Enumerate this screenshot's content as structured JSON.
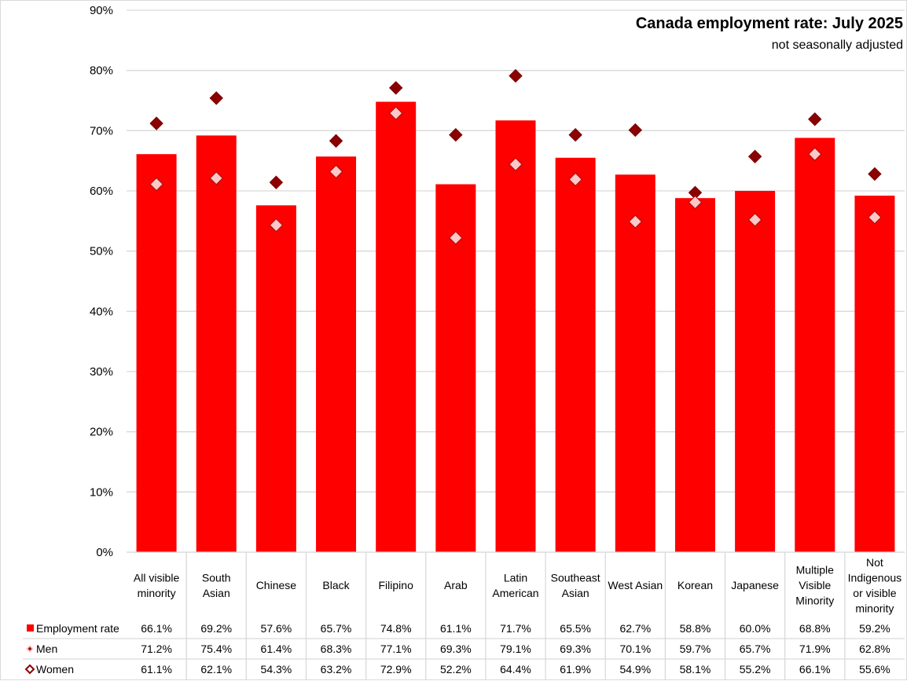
{
  "chart_data": {
    "type": "bar",
    "title": "Canada employment rate: July 2025",
    "subtitle": "not seasonally adjusted",
    "xlabel": "",
    "ylabel": "",
    "ylim": [
      0,
      90
    ],
    "y_ticks": [
      "0%",
      "10%",
      "20%",
      "30%",
      "40%",
      "50%",
      "60%",
      "70%",
      "80%",
      "90%"
    ],
    "y_tick_values": [
      0,
      10,
      20,
      30,
      40,
      50,
      60,
      70,
      80,
      90
    ],
    "grid": true,
    "legend_placement": "data-table-bottom",
    "categories": [
      [
        "All visible",
        "minority"
      ],
      [
        "South",
        "Asian"
      ],
      [
        "Chinese"
      ],
      [
        "Black"
      ],
      [
        "Filipino"
      ],
      [
        "Arab"
      ],
      [
        "Latin",
        "American"
      ],
      [
        "Southeast",
        "Asian"
      ],
      [
        "West Asian"
      ],
      [
        "Korean"
      ],
      [
        "Japanese"
      ],
      [
        "Multiple",
        "Visible",
        "Minority"
      ],
      [
        "Not",
        "Indigenous",
        "or visible",
        "minority"
      ]
    ],
    "series": [
      {
        "name": "Employment rate",
        "type": "bar",
        "color": "#ff0000",
        "values": [
          66.1,
          69.2,
          57.6,
          65.7,
          74.8,
          61.1,
          71.7,
          65.5,
          62.7,
          58.8,
          60.0,
          68.8,
          59.2
        ]
      },
      {
        "name": "Men",
        "type": "marker-diamond",
        "color": "#8b0000",
        "values": [
          71.2,
          75.4,
          61.4,
          68.3,
          77.1,
          69.3,
          79.1,
          69.3,
          70.1,
          59.7,
          65.7,
          71.9,
          62.8
        ]
      },
      {
        "name": "Women",
        "type": "marker-diamond",
        "color": "#ffc7c7",
        "values": [
          61.1,
          62.1,
          54.3,
          63.2,
          72.9,
          52.2,
          64.4,
          61.9,
          54.9,
          58.1,
          55.2,
          66.1,
          55.6
        ]
      }
    ],
    "table_rows": [
      {
        "label": "Employment rate",
        "cells": [
          "66.1%",
          "69.2%",
          "57.6%",
          "65.7%",
          "74.8%",
          "61.1%",
          "71.7%",
          "65.5%",
          "62.7%",
          "58.8%",
          "60.0%",
          "68.8%",
          "59.2%"
        ]
      },
      {
        "label": "Men",
        "cells": [
          "71.2%",
          "75.4%",
          "61.4%",
          "68.3%",
          "77.1%",
          "69.3%",
          "79.1%",
          "69.3%",
          "70.1%",
          "59.7%",
          "65.7%",
          "71.9%",
          "62.8%"
        ]
      },
      {
        "label": "Women",
        "cells": [
          "61.1%",
          "62.1%",
          "54.3%",
          "63.2%",
          "72.9%",
          "52.2%",
          "64.4%",
          "61.9%",
          "54.9%",
          "58.1%",
          "55.2%",
          "66.1%",
          "55.6%"
        ]
      }
    ]
  }
}
